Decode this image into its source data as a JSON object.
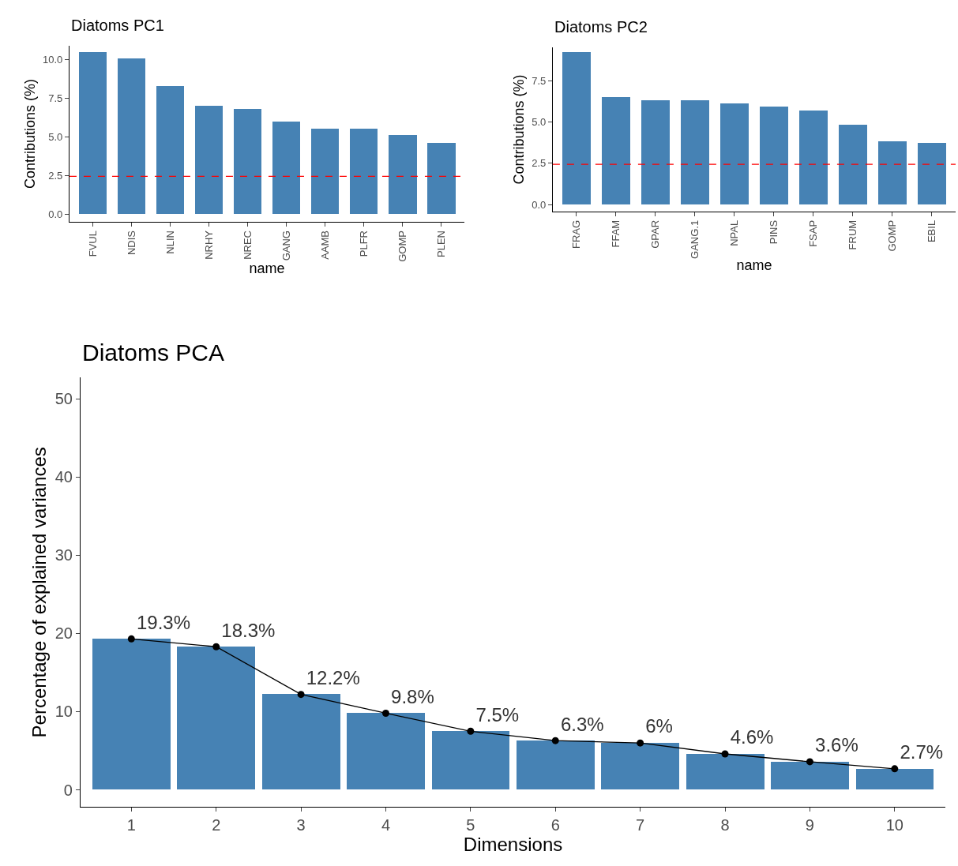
{
  "chart_data": [
    {
      "type": "bar",
      "title": "Diatoms PC1",
      "xlabel": "name",
      "ylabel": "Contributions (%)",
      "categories": [
        "FVUL",
        "NDIS",
        "NLIN",
        "NRHY",
        "NREC",
        "GANG",
        "AAMB",
        "PLFR",
        "GOMP",
        "PLEN"
      ],
      "series": [
        {
          "color": "#4682b4",
          "values": [
            10.5,
            10.1,
            8.3,
            7.0,
            6.8,
            6.0,
            5.5,
            5.5,
            5.1,
            4.6
          ]
        }
      ],
      "ylim": [
        -0.5,
        10.9
      ],
      "yticks": [
        {
          "value": 0,
          "label": "0.0"
        },
        {
          "value": 2.5,
          "label": "2.5"
        },
        {
          "value": 5,
          "label": "5.0"
        },
        {
          "value": 7.5,
          "label": "7.5"
        },
        {
          "value": 10,
          "label": "10.0"
        }
      ],
      "ref_lines": [
        {
          "axis": "y",
          "value": 2.44,
          "color": "#ff0000",
          "line_style": "dashed"
        }
      ]
    },
    {
      "type": "bar",
      "title": "Diatoms PC2",
      "xlabel": "name",
      "ylabel": "Contributions (%)",
      "categories": [
        "FRAG",
        "FFAM",
        "GPAR",
        "GANG.1",
        "NPAL",
        "PINS",
        "FSAP",
        "FRUM",
        "GOMP",
        "EBIL"
      ],
      "series": [
        {
          "color": "#4682b4",
          "values": [
            9.2,
            6.5,
            6.3,
            6.3,
            6.1,
            5.9,
            5.7,
            4.8,
            3.8,
            3.7
          ]
        }
      ],
      "ylim": [
        -0.4,
        9.5
      ],
      "yticks": [
        {
          "value": 0,
          "label": "0.0"
        },
        {
          "value": 2.5,
          "label": "2.5"
        },
        {
          "value": 5,
          "label": "5.0"
        },
        {
          "value": 7.5,
          "label": "7.5"
        }
      ],
      "ref_lines": [
        {
          "axis": "y",
          "value": 2.44,
          "color": "#ff0000",
          "line_style": "dashed"
        }
      ]
    },
    {
      "type": "bar",
      "title": "Diatoms PCA",
      "xlabel": "Dimensions",
      "ylabel": "Percentage of explained variances",
      "categories": [
        "1",
        "2",
        "3",
        "4",
        "5",
        "6",
        "7",
        "8",
        "9",
        "10"
      ],
      "series": [
        {
          "color": "#4682b4",
          "values": [
            19.3,
            18.3,
            12.2,
            9.8,
            7.5,
            6.3,
            6,
            4.6,
            3.6,
            2.7
          ]
        },
        {
          "type": "line",
          "color": "#000000",
          "marker": "circle",
          "line_style": "solid",
          "values": [
            19.3,
            18.3,
            12.2,
            9.8,
            7.5,
            6.3,
            6,
            4.6,
            3.6,
            2.7
          ],
          "value_labels": [
            "19.3%",
            "18.3%",
            "12.2%",
            "9.8%",
            "7.5%",
            "6.3%",
            "6%",
            "4.6%",
            "3.6%",
            "2.7%"
          ]
        }
      ],
      "ylim": [
        -2.2,
        52.7
      ],
      "yticks": [
        0,
        10,
        20,
        30,
        40,
        50
      ]
    }
  ]
}
